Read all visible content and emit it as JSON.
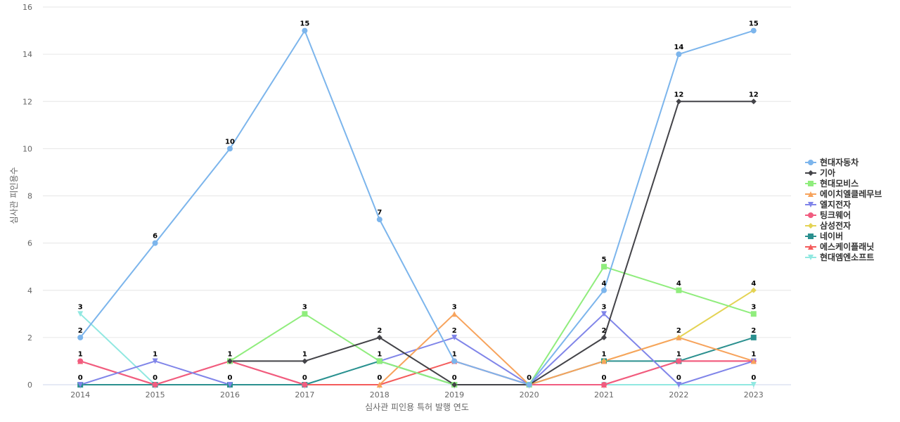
{
  "chart_data": {
    "type": "line",
    "title": "",
    "xlabel": "심사관 피인용 특허 발행 연도",
    "ylabel": "심사관 피인용수",
    "ylim": [
      0,
      16
    ],
    "yticks": [
      0,
      2,
      4,
      6,
      8,
      10,
      12,
      14,
      16
    ],
    "x": [
      "2014",
      "2015",
      "2016",
      "2017",
      "2018",
      "2019",
      "2020",
      "2021",
      "2022",
      "2023"
    ],
    "grid": true,
    "legend_position": "right",
    "series": [
      {
        "name": "현대자동차",
        "color": "#7cb5ec",
        "marker": "circle",
        "values": [
          2,
          6,
          10,
          15,
          7,
          1,
          0,
          4,
          14,
          15
        ]
      },
      {
        "name": "기아",
        "color": "#434348",
        "marker": "diamond",
        "values": [
          null,
          null,
          1,
          1,
          2,
          0,
          0,
          2,
          12,
          12
        ]
      },
      {
        "name": "현대모비스",
        "color": "#90ed7d",
        "marker": "square",
        "values": [
          null,
          null,
          1,
          3,
          1,
          0,
          0,
          5,
          4,
          3
        ]
      },
      {
        "name": "에이치엘클레무브",
        "color": "#f7a35c",
        "marker": "triangle",
        "values": [
          null,
          null,
          null,
          null,
          0,
          3,
          0,
          1,
          2,
          1
        ]
      },
      {
        "name": "엘지전자",
        "color": "#8085e9",
        "marker": "triangle-down",
        "values": [
          0,
          1,
          0,
          null,
          1,
          2,
          0,
          3,
          0,
          1
        ]
      },
      {
        "name": "팅크웨어",
        "color": "#f15c80",
        "marker": "circle",
        "values": [
          1,
          0,
          1,
          0,
          null,
          1,
          0,
          0,
          1,
          1
        ]
      },
      {
        "name": "삼성전자",
        "color": "#e4d354",
        "marker": "diamond",
        "values": [
          null,
          null,
          null,
          null,
          null,
          null,
          null,
          1,
          2,
          4
        ]
      },
      {
        "name": "네이버",
        "color": "#2b908f",
        "marker": "square",
        "values": [
          0,
          0,
          0,
          0,
          1,
          0,
          0,
          1,
          1,
          2
        ]
      },
      {
        "name": "에스케이플래닛",
        "color": "#f45b5b",
        "marker": "triangle",
        "values": [
          1,
          0,
          1,
          0,
          0,
          1,
          0,
          0,
          1,
          1
        ]
      },
      {
        "name": "현대엠엔소프트",
        "color": "#91e8e1",
        "marker": "triangle-down",
        "values": [
          3,
          0,
          0,
          0,
          1,
          0,
          0,
          0,
          0,
          0
        ]
      }
    ],
    "data_labels": [
      {
        "x": "2014",
        "y": 3,
        "text": "3"
      },
      {
        "x": "2014",
        "y": 2,
        "text": "2"
      },
      {
        "x": "2014",
        "y": 1,
        "text": "1"
      },
      {
        "x": "2014",
        "y": 0,
        "text": "0"
      },
      {
        "x": "2015",
        "y": 6,
        "text": "6"
      },
      {
        "x": "2015",
        "y": 1,
        "text": "1"
      },
      {
        "x": "2015",
        "y": 0,
        "text": "0"
      },
      {
        "x": "2016",
        "y": 10,
        "text": "10"
      },
      {
        "x": "2016",
        "y": 1,
        "text": "1"
      },
      {
        "x": "2016",
        "y": 0,
        "text": "0"
      },
      {
        "x": "2017",
        "y": 15,
        "text": "15"
      },
      {
        "x": "2017",
        "y": 3,
        "text": "3"
      },
      {
        "x": "2017",
        "y": 1,
        "text": "1"
      },
      {
        "x": "2017",
        "y": 0,
        "text": "0"
      },
      {
        "x": "2018",
        "y": 7,
        "text": "7"
      },
      {
        "x": "2018",
        "y": 2,
        "text": "2"
      },
      {
        "x": "2018",
        "y": 1,
        "text": "1"
      },
      {
        "x": "2018",
        "y": 0,
        "text": "0"
      },
      {
        "x": "2019",
        "y": 3,
        "text": "3"
      },
      {
        "x": "2019",
        "y": 2,
        "text": "2"
      },
      {
        "x": "2019",
        "y": 1,
        "text": "1"
      },
      {
        "x": "2019",
        "y": 0,
        "text": "0"
      },
      {
        "x": "2020",
        "y": 0,
        "text": "0"
      },
      {
        "x": "2021",
        "y": 5,
        "text": "5"
      },
      {
        "x": "2021",
        "y": 4,
        "text": "4"
      },
      {
        "x": "2021",
        "y": 3,
        "text": "3"
      },
      {
        "x": "2021",
        "y": 2,
        "text": "2"
      },
      {
        "x": "2021",
        "y": 1,
        "text": "1"
      },
      {
        "x": "2021",
        "y": 0,
        "text": "0"
      },
      {
        "x": "2022",
        "y": 14,
        "text": "14"
      },
      {
        "x": "2022",
        "y": 12,
        "text": "12"
      },
      {
        "x": "2022",
        "y": 4,
        "text": "4"
      },
      {
        "x": "2022",
        "y": 2,
        "text": "2"
      },
      {
        "x": "2022",
        "y": 1,
        "text": "1"
      },
      {
        "x": "2022",
        "y": 0,
        "text": "0"
      },
      {
        "x": "2023",
        "y": 15,
        "text": "15"
      },
      {
        "x": "2023",
        "y": 12,
        "text": "12"
      },
      {
        "x": "2023",
        "y": 4,
        "text": "4"
      },
      {
        "x": "2023",
        "y": 3,
        "text": "3"
      },
      {
        "x": "2023",
        "y": 2,
        "text": "2"
      },
      {
        "x": "2023",
        "y": 1,
        "text": "1"
      },
      {
        "x": "2023",
        "y": 0,
        "text": "0"
      }
    ]
  }
}
